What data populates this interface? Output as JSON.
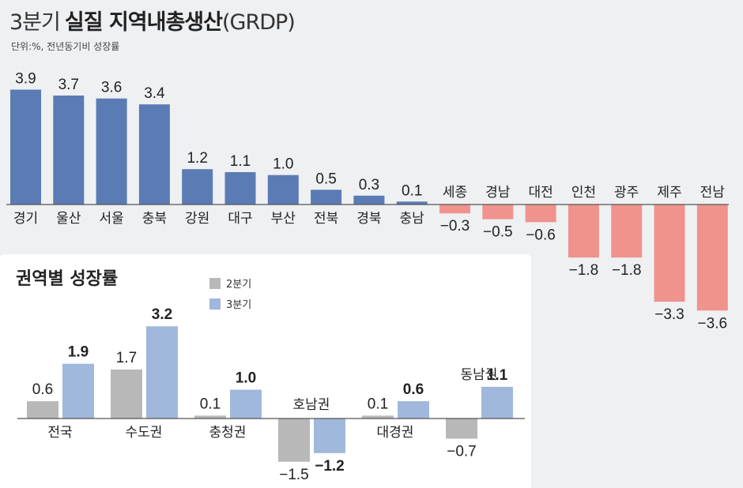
{
  "header": {
    "title_prefix": "3분기",
    "title_main": "실질 지역내총생산",
    "title_suffix": "(GRDP)",
    "unit": "단위:%,  전년동기비 성장률"
  },
  "colors": {
    "positive": "#5b7bb4",
    "negative": "#f0938d",
    "q2": "#b8b8b8",
    "q3": "#9fb8db"
  },
  "chart_data": [
    {
      "type": "bar",
      "title": "3분기 실질 지역내총생산(GRDP)",
      "ylabel": "단위:%,  전년동기비 성장률",
      "categories": [
        "경기",
        "울산",
        "서울",
        "충북",
        "강원",
        "대구",
        "부산",
        "전북",
        "경북",
        "충남",
        "세종",
        "경남",
        "대전",
        "인천",
        "광주",
        "제주",
        "전남"
      ],
      "values": [
        3.9,
        3.7,
        3.6,
        3.4,
        1.2,
        1.1,
        1.0,
        0.5,
        0.3,
        0.1,
        -0.3,
        -0.5,
        -0.6,
        -1.8,
        -1.8,
        -3.3,
        -3.6
      ],
      "value_labels": [
        "3.9",
        "3.7",
        "3.6",
        "3.4",
        "1.2",
        "1.1",
        "1.0",
        "0.5",
        "0.3",
        "0.1",
        "−0.3",
        "−0.5",
        "−0.6",
        "−1.8",
        "−1.8",
        "−3.3",
        "−3.6"
      ]
    },
    {
      "type": "bar",
      "title": "권역별 성장률",
      "categories": [
        "전국",
        "수도권",
        "충청권",
        "호남권",
        "대경권",
        "동남권"
      ],
      "series": [
        {
          "name": "2분기",
          "values": [
            0.6,
            1.7,
            0.1,
            -1.5,
            0.1,
            -0.7
          ],
          "labels": [
            "0.6",
            "1.7",
            "0.1",
            "−1.5",
            "0.1",
            "−0.7"
          ]
        },
        {
          "name": "3분기",
          "values": [
            1.9,
            3.2,
            1.0,
            -1.2,
            0.6,
            1.1
          ],
          "labels": [
            "1.9",
            "3.2",
            "1.0",
            "−1.2",
            "0.6",
            "1.1"
          ]
        }
      ],
      "legend": "top-left"
    }
  ]
}
